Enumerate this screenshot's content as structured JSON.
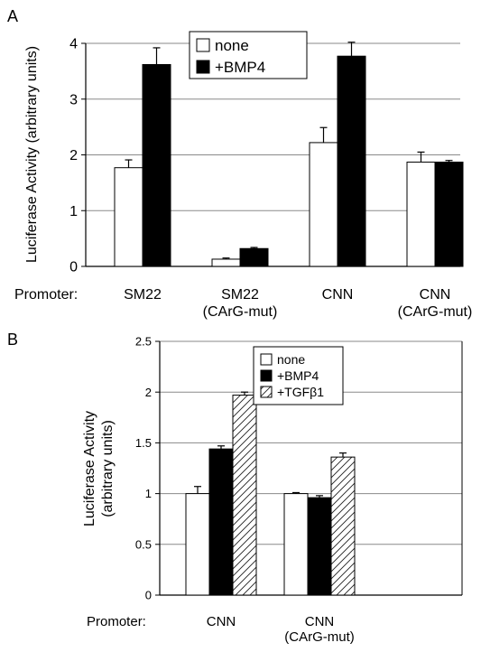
{
  "chart_data": [
    {
      "type": "bar",
      "panel_label": "A",
      "ylabel": "Luciferase Activity (arbitrary units)",
      "row_label": "Promoter:",
      "categories": [
        [
          "SM22"
        ],
        [
          "SM22",
          "(CArG-mut)"
        ],
        [
          "CNN"
        ],
        [
          "CNN",
          "(CArG-mut)"
        ]
      ],
      "ylim": [
        0,
        4
      ],
      "yticks": [
        "0",
        "1",
        "2",
        "3",
        "4"
      ],
      "grid": true,
      "legend_position": "top-center",
      "series": [
        {
          "name": "none",
          "fill": "white",
          "values": [
            1.77,
            0.13,
            2.22,
            1.87
          ],
          "errors": [
            0.14,
            0.02,
            0.27,
            0.18
          ]
        },
        {
          "name": "+BMP4",
          "fill": "black",
          "values": [
            3.62,
            0.32,
            3.77,
            1.87
          ],
          "errors": [
            0.3,
            0.02,
            0.25,
            0.03
          ]
        }
      ]
    },
    {
      "type": "bar",
      "panel_label": "B",
      "ylabel": [
        "Luciferase Activity",
        "(arbitrary units)"
      ],
      "row_label": "Promoter:",
      "categories": [
        [
          "CNN"
        ],
        [
          "CNN",
          "(CArG-mut)"
        ]
      ],
      "ylim": [
        0,
        2.5
      ],
      "yticks": [
        "0",
        "0.5",
        "1",
        "1.5",
        "2",
        "2.5"
      ],
      "grid": true,
      "legend_position": "top-right",
      "series": [
        {
          "name": "none",
          "fill": "white",
          "values": [
            1.0,
            1.0
          ],
          "errors": [
            0.07,
            0.01
          ]
        },
        {
          "name": "+BMP4",
          "fill": "black",
          "values": [
            1.44,
            0.96
          ],
          "errors": [
            0.03,
            0.02
          ]
        },
        {
          "name": "+TGFβ1",
          "fill": "hatch",
          "values": [
            1.97,
            1.36
          ],
          "errors": [
            0.03,
            0.04
          ]
        }
      ]
    }
  ]
}
